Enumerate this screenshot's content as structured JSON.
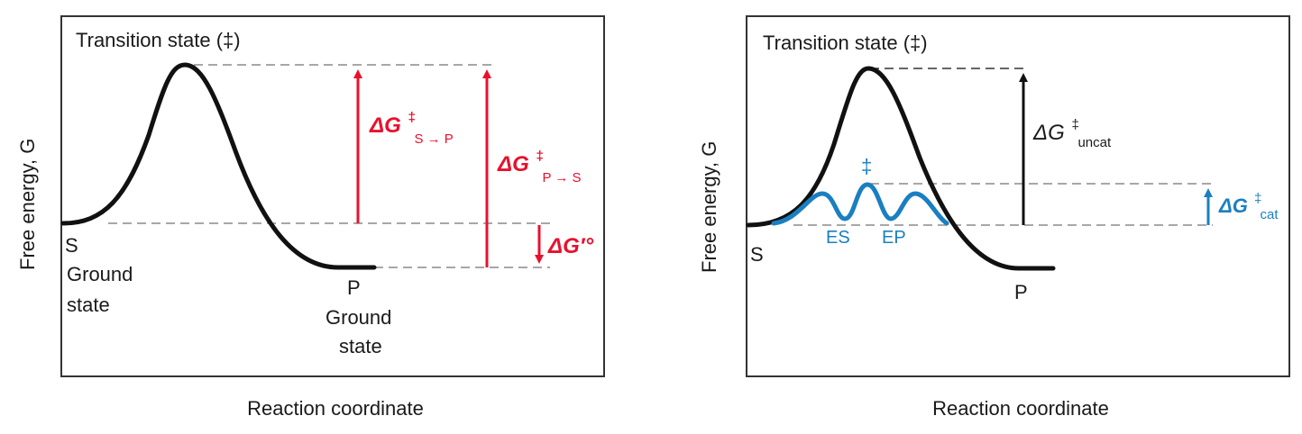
{
  "colors": {
    "curve": "#111111",
    "red": "#e8112d",
    "blue": "#1a7fc1",
    "dash": "#8a8a8a"
  },
  "left_panel": {
    "transition_state": "Transition state (‡)",
    "y_axis": "Free energy, G",
    "x_axis": "Reaction coordinate",
    "s_label": "S",
    "s_ground_1": "Ground",
    "s_ground_2": "state",
    "p_label": "P",
    "p_ground_1": "Ground",
    "p_ground_2": "state",
    "dg_sp": {
      "delta": "ΔG",
      "sup": "‡",
      "sub": "S → P"
    },
    "dg_ps": {
      "delta": "ΔG",
      "sup": "‡",
      "sub": "P → S"
    },
    "dg_std": "ΔG′°"
  },
  "right_panel": {
    "transition_state": "Transition state (‡)",
    "y_axis": "Free energy, G",
    "x_axis": "Reaction coordinate",
    "s_label": "S",
    "p_label": "P",
    "es_label": "ES",
    "ep_label": "EP",
    "cat_ts": "‡",
    "dg_uncat": {
      "delta": "ΔG",
      "sup": "‡",
      "sub": "uncat"
    },
    "dg_cat": {
      "delta": "ΔG",
      "sup": "‡",
      "sub": "cat"
    }
  }
}
